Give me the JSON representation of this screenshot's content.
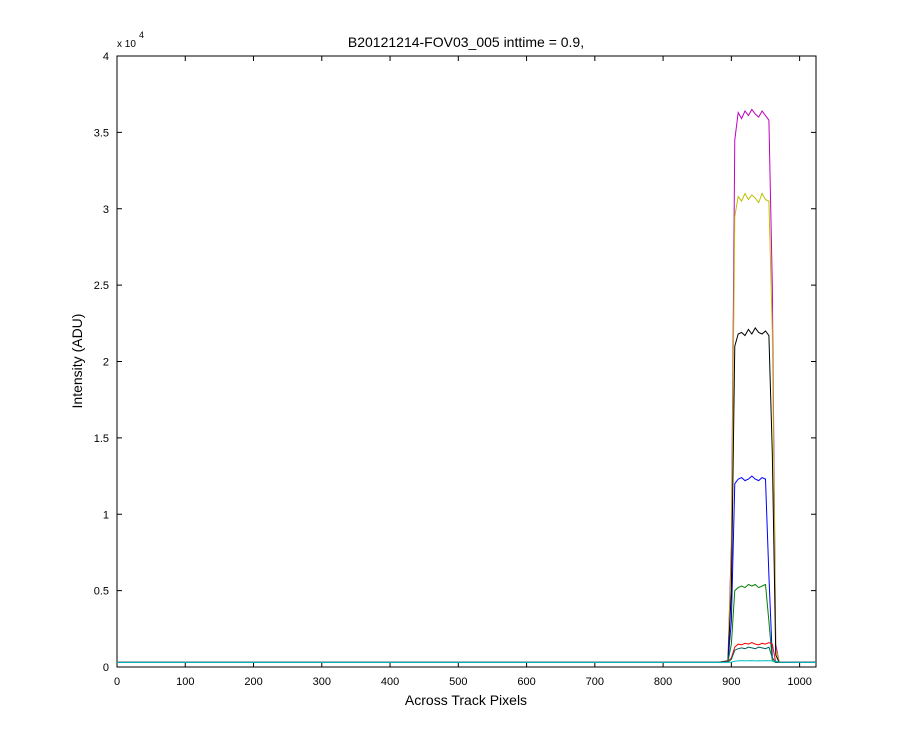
{
  "chart_data": {
    "type": "line",
    "title": "B20121214-FOV03_005 inttime = 0.9,",
    "xlabel": "Across Track Pixels",
    "ylabel": "Intensity (ADU)",
    "y_multiplier": "x 10",
    "y_exponent": "4",
    "xlim": [
      0,
      1024
    ],
    "ylim": [
      0,
      40000
    ],
    "xticks": [
      0,
      100,
      200,
      300,
      400,
      500,
      600,
      700,
      800,
      900,
      1000
    ],
    "yticks": [
      {
        "value": 0,
        "label": "0"
      },
      {
        "value": 5000,
        "label": "0.5"
      },
      {
        "value": 10000,
        "label": "1"
      },
      {
        "value": 15000,
        "label": "1.5"
      },
      {
        "value": 20000,
        "label": "2"
      },
      {
        "value": 25000,
        "label": "2.5"
      },
      {
        "value": 30000,
        "label": "3"
      },
      {
        "value": 35000,
        "label": "3.5"
      },
      {
        "value": 40000,
        "label": "4"
      }
    ],
    "x": [
      0,
      100,
      200,
      300,
      400,
      500,
      600,
      700,
      800,
      880,
      895,
      900,
      905,
      910,
      915,
      920,
      925,
      930,
      935,
      940,
      945,
      950,
      955,
      960,
      965,
      970,
      1000,
      1024
    ],
    "series": [
      {
        "color": "#bf00bf",
        "values": [
          300,
          300,
          300,
          300,
          300,
          300,
          300,
          300,
          300,
          300,
          400,
          8000,
          34500,
          36300,
          35900,
          36400,
          36100,
          36500,
          36200,
          36000,
          36400,
          36100,
          35800,
          25000,
          1500,
          320,
          320,
          320
        ]
      },
      {
        "color": "#bfbf00",
        "values": [
          300,
          300,
          300,
          300,
          300,
          300,
          300,
          300,
          300,
          300,
          400,
          7000,
          29500,
          30800,
          30500,
          31000,
          30600,
          30900,
          30700,
          30400,
          31000,
          30600,
          30500,
          22000,
          1200,
          300,
          300,
          300
        ]
      },
      {
        "color": "#000000",
        "values": [
          300,
          300,
          300,
          300,
          300,
          300,
          300,
          300,
          300,
          300,
          400,
          5000,
          21000,
          21800,
          21900,
          21700,
          22100,
          21800,
          22200,
          21900,
          21800,
          22000,
          21700,
          14000,
          800,
          300,
          300,
          300
        ]
      },
      {
        "color": "#0000ff",
        "values": [
          300,
          300,
          300,
          300,
          300,
          300,
          300,
          300,
          300,
          300,
          350,
          3000,
          12000,
          12300,
          12400,
          12200,
          12300,
          12500,
          12300,
          12200,
          12400,
          12300,
          6000,
          600,
          300,
          300,
          300,
          300
        ]
      },
      {
        "color": "#008000",
        "values": [
          300,
          300,
          300,
          300,
          300,
          300,
          300,
          300,
          300,
          300,
          350,
          1500,
          5000,
          5200,
          5300,
          5200,
          5400,
          5300,
          5400,
          5200,
          5300,
          5400,
          3000,
          400,
          300,
          300,
          300,
          300
        ]
      },
      {
        "color": "#ff0000",
        "values": [
          300,
          300,
          300,
          300,
          300,
          300,
          300,
          300,
          300,
          300,
          350,
          600,
          1300,
          1500,
          1450,
          1550,
          1500,
          1600,
          1500,
          1450,
          1550,
          1500,
          1600,
          1500,
          300,
          300,
          300,
          300
        ]
      },
      {
        "color": "#006060",
        "values": [
          300,
          300,
          300,
          300,
          300,
          300,
          300,
          300,
          300,
          300,
          330,
          500,
          1100,
          1200,
          1250,
          1200,
          1300,
          1250,
          1200,
          1300,
          1250,
          1200,
          1300,
          600,
          300,
          300,
          300,
          300
        ]
      },
      {
        "color": "#00bfbf",
        "values": [
          300,
          300,
          300,
          300,
          300,
          300,
          300,
          300,
          300,
          300,
          300,
          320,
          380,
          400,
          420,
          400,
          410,
          420,
          400,
          410,
          400,
          420,
          410,
          400,
          380,
          320,
          300,
          300
        ]
      }
    ]
  }
}
